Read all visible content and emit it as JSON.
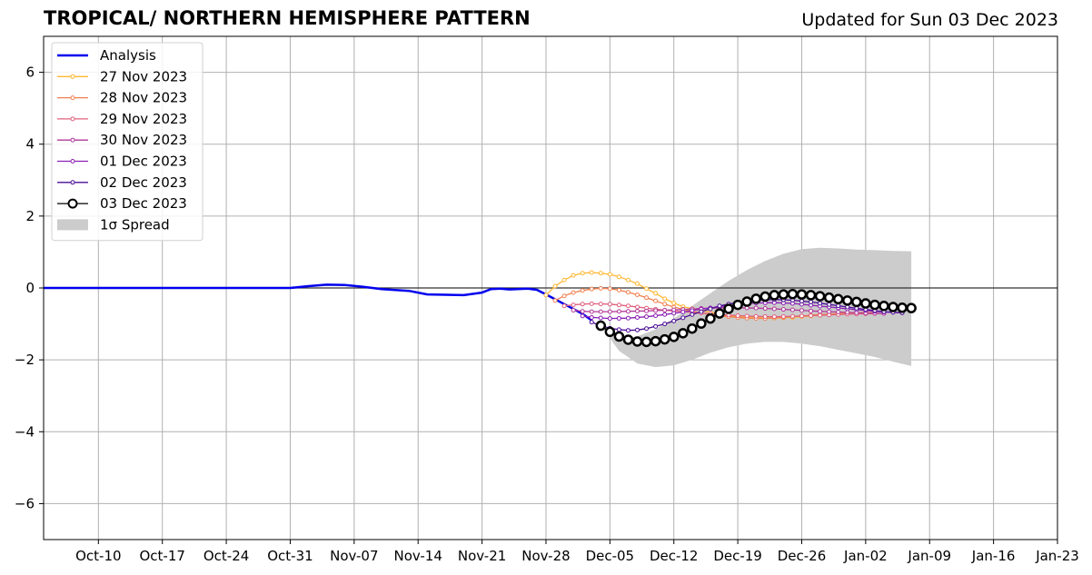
{
  "header": {
    "title": "TROPICAL/ NORTHERN HEMISPHERE PATTERN",
    "updated": "Updated for Sun 03 Dec 2023"
  },
  "chart_data": {
    "type": "line",
    "title": "TROPICAL/ NORTHERN HEMISPHERE PATTERN",
    "subtitle": "Updated for Sun 03 Dec 2023",
    "xlabel": "",
    "ylabel": "",
    "x_ticks": [
      "Oct-10",
      "Oct-17",
      "Oct-24",
      "Oct-31",
      "Nov-07",
      "Nov-14",
      "Nov-21",
      "Nov-28",
      "Dec-05",
      "Dec-12",
      "Dec-19",
      "Dec-26",
      "Jan-02",
      "Jan-09",
      "Jan-16",
      "Jan-23"
    ],
    "xlim": [
      "2023-10-04",
      "2024-01-23"
    ],
    "ylim": [
      -7,
      7
    ],
    "y_ticks": [
      -6,
      -4,
      -2,
      0,
      2,
      4,
      6
    ],
    "grid": true,
    "legend_position": "top-left",
    "zero_line": true,
    "spread": {
      "name": "1σ Spread",
      "color": "#cccccc",
      "x": [
        "2023-12-04",
        "2023-12-06",
        "2023-12-08",
        "2023-12-10",
        "2023-12-12",
        "2023-12-14",
        "2023-12-16",
        "2023-12-18",
        "2023-12-20",
        "2023-12-22",
        "2023-12-24",
        "2023-12-26",
        "2023-12-28",
        "2023-12-30",
        "2024-01-01",
        "2024-01-03",
        "2024-01-05",
        "2024-01-07"
      ],
      "upper": [
        -1.05,
        -1.4,
        -1.35,
        -1.15,
        -0.85,
        -0.5,
        -0.15,
        0.2,
        0.5,
        0.75,
        0.95,
        1.08,
        1.12,
        1.1,
        1.07,
        1.05,
        1.03,
        1.02
      ],
      "lower": [
        -1.05,
        -1.75,
        -2.1,
        -2.2,
        -2.15,
        -2.0,
        -1.8,
        -1.65,
        -1.55,
        -1.5,
        -1.5,
        -1.55,
        -1.62,
        -1.72,
        -1.82,
        -1.92,
        -2.05,
        -2.17
      ]
    },
    "series": [
      {
        "name": "Analysis",
        "color": "#0000ee",
        "marker": "none",
        "points": [
          [
            "2023-10-04",
            0
          ],
          [
            "2023-10-31",
            0
          ],
          [
            "2023-11-02",
            0.05
          ],
          [
            "2023-11-04",
            0.09
          ],
          [
            "2023-11-06",
            0.08
          ],
          [
            "2023-11-08",
            0.03
          ],
          [
            "2023-11-10",
            -0.03
          ],
          [
            "2023-11-13",
            -0.08
          ],
          [
            "2023-11-15",
            -0.18
          ],
          [
            "2023-11-17",
            -0.19
          ],
          [
            "2023-11-19",
            -0.2
          ],
          [
            "2023-11-21",
            -0.13
          ],
          [
            "2023-11-22",
            -0.03
          ],
          [
            "2023-11-23",
            -0.02
          ],
          [
            "2023-11-24",
            -0.04
          ],
          [
            "2023-11-26",
            -0.02
          ],
          [
            "2023-11-27",
            -0.05
          ],
          [
            "2023-11-28",
            -0.18
          ],
          [
            "2023-11-30",
            -0.45
          ],
          [
            "2023-12-02",
            -0.72
          ],
          [
            "2023-12-03",
            -0.9
          ]
        ]
      },
      {
        "name": "27 Nov 2023",
        "color": "#ffb833",
        "marker": "dot",
        "points": [
          [
            "2023-11-28",
            -0.2
          ],
          [
            "2023-11-29",
            0.05
          ],
          [
            "2023-11-30",
            0.22
          ],
          [
            "2023-12-01",
            0.35
          ],
          [
            "2023-12-02",
            0.41
          ],
          [
            "2023-12-03",
            0.43
          ],
          [
            "2023-12-04",
            0.41
          ],
          [
            "2023-12-05",
            0.38
          ],
          [
            "2023-12-06",
            0.31
          ],
          [
            "2023-12-07",
            0.22
          ],
          [
            "2023-12-08",
            0.12
          ],
          [
            "2023-12-09",
            -0.02
          ],
          [
            "2023-12-10",
            -0.15
          ],
          [
            "2023-12-11",
            -0.3
          ],
          [
            "2023-12-12",
            -0.42
          ],
          [
            "2023-12-13",
            -0.52
          ],
          [
            "2023-12-15",
            -0.63
          ],
          [
            "2023-12-17",
            -0.73
          ],
          [
            "2023-12-19",
            -0.8
          ],
          [
            "2023-12-21",
            -0.83
          ],
          [
            "2023-12-23",
            -0.84
          ],
          [
            "2023-12-25",
            -0.82
          ],
          [
            "2023-12-27",
            -0.78
          ],
          [
            "2023-12-29",
            -0.74
          ],
          [
            "2023-12-31",
            -0.7
          ],
          [
            "2024-01-02",
            -0.68
          ]
        ]
      },
      {
        "name": "28 Nov 2023",
        "color": "#f08050",
        "marker": "dot",
        "points": [
          [
            "2023-11-29",
            -0.35
          ],
          [
            "2023-11-30",
            -0.22
          ],
          [
            "2023-12-01",
            -0.13
          ],
          [
            "2023-12-02",
            -0.07
          ],
          [
            "2023-12-03",
            -0.03
          ],
          [
            "2023-12-04",
            -0.01
          ],
          [
            "2023-12-05",
            -0.02
          ],
          [
            "2023-12-06",
            -0.06
          ],
          [
            "2023-12-07",
            -0.12
          ],
          [
            "2023-12-08",
            -0.19
          ],
          [
            "2023-12-09",
            -0.27
          ],
          [
            "2023-12-10",
            -0.36
          ],
          [
            "2023-12-11",
            -0.45
          ],
          [
            "2023-12-12",
            -0.53
          ],
          [
            "2023-12-14",
            -0.65
          ],
          [
            "2023-12-16",
            -0.74
          ],
          [
            "2023-12-18",
            -0.8
          ],
          [
            "2023-12-20",
            -0.84
          ],
          [
            "2023-12-22",
            -0.85
          ],
          [
            "2023-12-24",
            -0.82
          ],
          [
            "2023-12-26",
            -0.78
          ],
          [
            "2023-12-28",
            -0.74
          ],
          [
            "2023-12-30",
            -0.71
          ],
          [
            "2024-01-01",
            -0.69
          ],
          [
            "2024-01-03",
            -0.68
          ]
        ]
      },
      {
        "name": "29 Nov 2023",
        "color": "#e0607e",
        "marker": "dot",
        "points": [
          [
            "2023-11-30",
            -0.5
          ],
          [
            "2023-12-01",
            -0.47
          ],
          [
            "2023-12-02",
            -0.45
          ],
          [
            "2023-12-03",
            -0.44
          ],
          [
            "2023-12-05",
            -0.45
          ],
          [
            "2023-12-07",
            -0.5
          ],
          [
            "2023-12-09",
            -0.56
          ],
          [
            "2023-12-11",
            -0.62
          ],
          [
            "2023-12-13",
            -0.66
          ],
          [
            "2023-12-15",
            -0.7
          ],
          [
            "2023-12-17",
            -0.74
          ],
          [
            "2023-12-19",
            -0.77
          ],
          [
            "2023-12-21",
            -0.79
          ],
          [
            "2023-12-23",
            -0.8
          ],
          [
            "2023-12-25",
            -0.79
          ],
          [
            "2023-12-27",
            -0.77
          ],
          [
            "2023-12-29",
            -0.75
          ],
          [
            "2023-12-31",
            -0.73
          ],
          [
            "2024-01-02",
            -0.72
          ],
          [
            "2024-01-04",
            -0.71
          ]
        ]
      },
      {
        "name": "30 Nov 2023",
        "color": "#b0399a",
        "marker": "dot",
        "points": [
          [
            "2023-12-01",
            -0.62
          ],
          [
            "2023-12-02",
            -0.65
          ],
          [
            "2023-12-03",
            -0.66
          ],
          [
            "2023-12-05",
            -0.66
          ],
          [
            "2023-12-07",
            -0.65
          ],
          [
            "2023-12-09",
            -0.64
          ],
          [
            "2023-12-11",
            -0.62
          ],
          [
            "2023-12-13",
            -0.6
          ],
          [
            "2023-12-15",
            -0.57
          ],
          [
            "2023-12-17",
            -0.55
          ],
          [
            "2023-12-19",
            -0.55
          ],
          [
            "2023-12-21",
            -0.56
          ],
          [
            "2023-12-23",
            -0.58
          ],
          [
            "2023-12-25",
            -0.61
          ],
          [
            "2023-12-27",
            -0.64
          ],
          [
            "2023-12-29",
            -0.66
          ],
          [
            "2023-12-31",
            -0.68
          ],
          [
            "2024-01-02",
            -0.7
          ],
          [
            "2024-01-04",
            -0.71
          ]
        ]
      },
      {
        "name": "01 Dec 2023",
        "color": "#8a1fb5",
        "marker": "dot",
        "points": [
          [
            "2023-12-02",
            -0.78
          ],
          [
            "2023-12-03",
            -0.82
          ],
          [
            "2023-12-05",
            -0.85
          ],
          [
            "2023-12-07",
            -0.84
          ],
          [
            "2023-12-09",
            -0.8
          ],
          [
            "2023-12-11",
            -0.74
          ],
          [
            "2023-12-13",
            -0.67
          ],
          [
            "2023-12-15",
            -0.59
          ],
          [
            "2023-12-17",
            -0.52
          ],
          [
            "2023-12-19",
            -0.46
          ],
          [
            "2023-12-21",
            -0.42
          ],
          [
            "2023-12-23",
            -0.41
          ],
          [
            "2023-12-25",
            -0.43
          ],
          [
            "2023-12-27",
            -0.48
          ],
          [
            "2023-12-29",
            -0.53
          ],
          [
            "2023-12-31",
            -0.58
          ],
          [
            "2024-01-02",
            -0.63
          ],
          [
            "2024-01-04",
            -0.67
          ],
          [
            "2024-01-06",
            -0.69
          ]
        ]
      },
      {
        "name": "02 Dec 2023",
        "color": "#4b0e96",
        "marker": "dot",
        "points": [
          [
            "2023-12-03",
            -0.95
          ],
          [
            "2023-12-04",
            -1.05
          ],
          [
            "2023-12-05",
            -1.12
          ],
          [
            "2023-12-06",
            -1.16
          ],
          [
            "2023-12-07",
            -1.18
          ],
          [
            "2023-12-08",
            -1.17
          ],
          [
            "2023-12-09",
            -1.13
          ],
          [
            "2023-12-10",
            -1.07
          ],
          [
            "2023-12-11",
            -1.0
          ],
          [
            "2023-12-12",
            -0.92
          ],
          [
            "2023-12-13",
            -0.83
          ],
          [
            "2023-12-14",
            -0.74
          ],
          [
            "2023-12-15",
            -0.66
          ],
          [
            "2023-12-17",
            -0.5
          ],
          [
            "2023-12-19",
            -0.4
          ],
          [
            "2023-12-21",
            -0.34
          ],
          [
            "2023-12-23",
            -0.32
          ],
          [
            "2023-12-25",
            -0.34
          ],
          [
            "2023-12-27",
            -0.39
          ],
          [
            "2023-12-29",
            -0.46
          ],
          [
            "2023-12-31",
            -0.53
          ],
          [
            "2024-01-02",
            -0.6
          ],
          [
            "2024-01-04",
            -0.66
          ],
          [
            "2024-01-06",
            -0.69
          ]
        ]
      },
      {
        "name": "03 Dec 2023",
        "color": "#000000",
        "marker": "open-circle",
        "points": [
          [
            "2023-12-04",
            -1.05
          ],
          [
            "2023-12-05",
            -1.22
          ],
          [
            "2023-12-06",
            -1.35
          ],
          [
            "2023-12-07",
            -1.44
          ],
          [
            "2023-12-08",
            -1.49
          ],
          [
            "2023-12-09",
            -1.5
          ],
          [
            "2023-12-10",
            -1.48
          ],
          [
            "2023-12-11",
            -1.43
          ],
          [
            "2023-12-12",
            -1.36
          ],
          [
            "2023-12-13",
            -1.26
          ],
          [
            "2023-12-14",
            -1.13
          ],
          [
            "2023-12-15",
            -0.99
          ],
          [
            "2023-12-16",
            -0.85
          ],
          [
            "2023-12-17",
            -0.71
          ],
          [
            "2023-12-18",
            -0.58
          ],
          [
            "2023-12-19",
            -0.47
          ],
          [
            "2023-12-20",
            -0.38
          ],
          [
            "2023-12-21",
            -0.3
          ],
          [
            "2023-12-22",
            -0.24
          ],
          [
            "2023-12-23",
            -0.2
          ],
          [
            "2023-12-24",
            -0.18
          ],
          [
            "2023-12-25",
            -0.17
          ],
          [
            "2023-12-26",
            -0.18
          ],
          [
            "2023-12-27",
            -0.2
          ],
          [
            "2023-12-28",
            -0.23
          ],
          [
            "2023-12-29",
            -0.27
          ],
          [
            "2023-12-30",
            -0.31
          ],
          [
            "2023-12-31",
            -0.35
          ],
          [
            "2024-01-01",
            -0.39
          ],
          [
            "2024-01-02",
            -0.43
          ],
          [
            "2024-01-03",
            -0.47
          ],
          [
            "2024-01-04",
            -0.5
          ],
          [
            "2024-01-05",
            -0.53
          ],
          [
            "2024-01-06",
            -0.55
          ],
          [
            "2024-01-07",
            -0.56
          ]
        ]
      }
    ]
  }
}
